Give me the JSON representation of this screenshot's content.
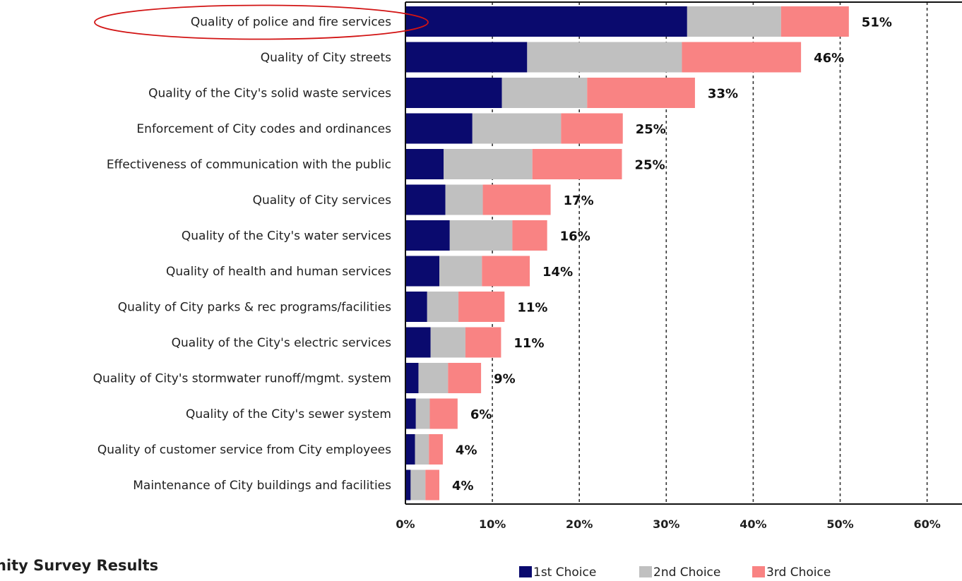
{
  "caption": "nity Survey Results",
  "chart_data": {
    "type": "bar",
    "orientation": "horizontal",
    "stacked": true,
    "title": "",
    "xlabel": "",
    "ylabel": "",
    "xlim": [
      0,
      60
    ],
    "x_ticks": [
      "0%",
      "10%",
      "20%",
      "30%",
      "40%",
      "50%",
      "60%"
    ],
    "x_tick_values": [
      0,
      10,
      20,
      30,
      40,
      50,
      60
    ],
    "grid": "vertical dashed",
    "legend_position": "bottom",
    "categories": [
      "Quality of police and fire services",
      "Quality of City streets",
      "Quality of the City's solid waste services",
      "Enforcement of City codes and ordinances",
      "Effectiveness of communication with the public",
      "Quality of City services",
      "Quality of the City's water services",
      "Quality of health and human services",
      "Quality of City parks & rec programs/facilities",
      "Quality of the City's electric services",
      "Quality of City's stormwater runoff/mgmt. system",
      "Quality of the City's sewer system",
      "Quality of customer service from City employees",
      "Maintenance of City buildings and facilities"
    ],
    "series": [
      {
        "name": "1st Choice",
        "color": "#0a0a6e",
        "values": [
          32.4,
          14.0,
          11.1,
          7.7,
          4.4,
          4.6,
          5.1,
          3.9,
          2.5,
          2.9,
          1.5,
          1.2,
          1.1,
          0.6
        ]
      },
      {
        "name": "2nd Choice",
        "color": "#c0c0c0",
        "values": [
          10.8,
          17.8,
          9.8,
          10.2,
          10.2,
          4.3,
          7.2,
          4.9,
          3.6,
          4.0,
          3.4,
          1.6,
          1.6,
          1.7
        ]
      },
      {
        "name": "3rd Choice",
        "color": "#f98383",
        "values": [
          7.8,
          13.7,
          12.4,
          7.1,
          10.3,
          7.8,
          4.0,
          5.5,
          5.3,
          4.1,
          3.8,
          3.2,
          1.6,
          1.6
        ]
      }
    ],
    "totals": [
      "51%",
      "46%",
      "33%",
      "25%",
      "25%",
      "17%",
      "16%",
      "14%",
      "11%",
      "11%",
      "9%",
      "6%",
      "4%",
      "4%"
    ],
    "highlighted_category": "Quality of police and fire services",
    "highlight_color": "#d21414"
  }
}
